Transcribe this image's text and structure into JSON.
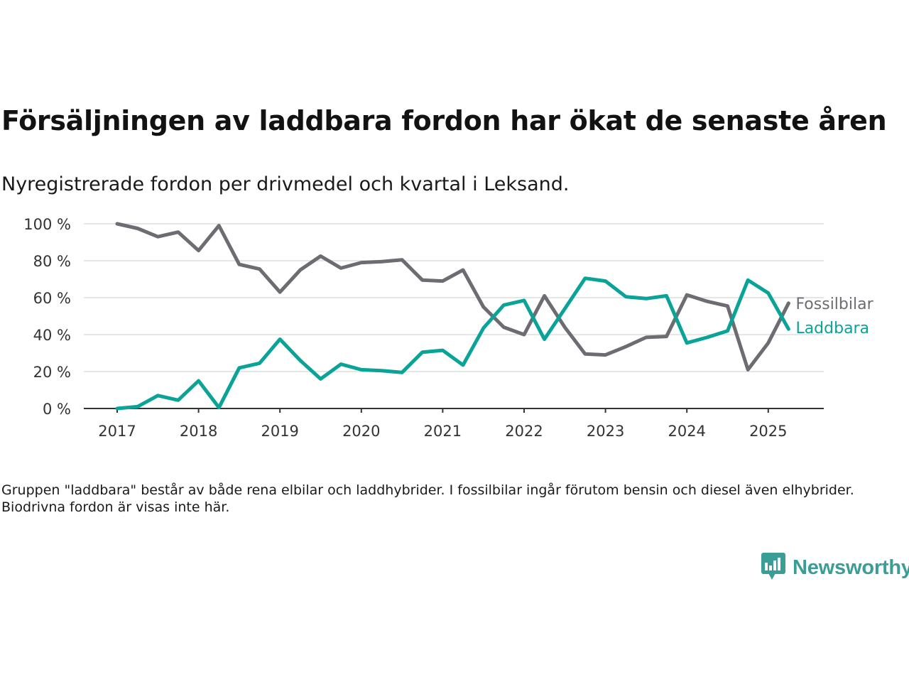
{
  "title": "Försäljningen av laddbara fordon har ökat de senaste åren",
  "subtitle": "Nyregistrerade fordon per drivmedel och kvartal i Leksand.",
  "note": "Gruppen \"laddbara\" består av både rena elbilar och laddhybrider. I fossilbilar ingår förutom bensin och diesel även elhybrider. Biodrivna fordon är visas inte här.",
  "brand": {
    "name": "Newsworthy",
    "icon": "newsworthy-logo-icon",
    "color": "#3a9e96"
  },
  "chart_data": {
    "type": "line",
    "x": [
      "2017-Q1",
      "2017-Q2",
      "2017-Q3",
      "2017-Q4",
      "2018-Q1",
      "2018-Q2",
      "2018-Q3",
      "2018-Q4",
      "2019-Q1",
      "2019-Q2",
      "2019-Q3",
      "2019-Q4",
      "2020-Q1",
      "2020-Q2",
      "2020-Q3",
      "2020-Q4",
      "2021-Q1",
      "2021-Q2",
      "2021-Q3",
      "2021-Q4",
      "2022-Q1",
      "2022-Q2",
      "2022-Q3",
      "2022-Q4",
      "2023-Q1",
      "2023-Q2",
      "2023-Q3",
      "2023-Q4",
      "2024-Q1",
      "2024-Q2",
      "2024-Q3",
      "2024-Q4",
      "2025-Q1",
      "2025-Q2"
    ],
    "x_ticks": [
      "2017",
      "2018",
      "2019",
      "2020",
      "2021",
      "2022",
      "2023",
      "2024",
      "2025"
    ],
    "y_ticks": [
      "0 %",
      "20 %",
      "40 %",
      "60 %",
      "80 %",
      "100 %"
    ],
    "ylim": [
      0,
      100
    ],
    "grid": true,
    "legend": "end-of-line labels",
    "series": [
      {
        "name": "Fossilbilar",
        "color": "#6d6c72",
        "values": [
          100,
          97.5,
          93,
          95.5,
          85.5,
          99,
          78,
          75.5,
          63,
          75,
          82.5,
          76,
          79,
          79.5,
          80.5,
          69.5,
          69,
          75,
          55,
          44,
          40,
          61,
          44,
          29.5,
          29,
          33.5,
          38.5,
          39,
          61.5,
          58,
          55.5,
          21,
          35.5,
          57
        ]
      },
      {
        "name": "Laddbara",
        "color": "#0aa397",
        "values": [
          0,
          1,
          7,
          4.5,
          15,
          0.5,
          22,
          24.5,
          37.5,
          26,
          16,
          24,
          21,
          20.5,
          19.5,
          30.5,
          31.5,
          23.5,
          43.5,
          56,
          58.5,
          37.5,
          54,
          70.5,
          69,
          60.5,
          59.5,
          61,
          35.5,
          38.5,
          42,
          69.5,
          62.5,
          43
        ]
      }
    ]
  }
}
